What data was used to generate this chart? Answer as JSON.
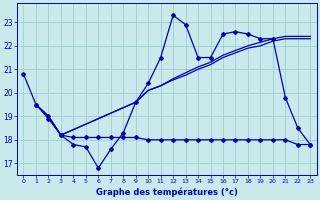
{
  "title": "Graphe des températures (°c)",
  "background_color": "#c8eaea",
  "line_color": "#0000bb",
  "grid_color": "#9ecece",
  "ylim": [
    16.5,
    23.8
  ],
  "yticks": [
    17,
    18,
    19,
    20,
    21,
    22,
    23
  ],
  "xticks": [
    0,
    1,
    2,
    3,
    4,
    5,
    6,
    7,
    8,
    9,
    10,
    11,
    12,
    13,
    14,
    15,
    16,
    17,
    18,
    19,
    20,
    21,
    22,
    23
  ],
  "line1_x": [
    0,
    1,
    2,
    3,
    4,
    5,
    6,
    7,
    8,
    9,
    10,
    11,
    12,
    13,
    14,
    15,
    16,
    17,
    18,
    19,
    20,
    21,
    22,
    23
  ],
  "line1_y": [
    20.8,
    19.5,
    18.9,
    18.2,
    17.8,
    17.7,
    16.8,
    17.6,
    18.3,
    19.6,
    20.4,
    21.5,
    23.3,
    22.9,
    21.5,
    21.5,
    22.5,
    22.6,
    22.5,
    22.3,
    22.3,
    19.8,
    18.5,
    17.8
  ],
  "line2_x": [
    1,
    2,
    3,
    4,
    5,
    6,
    7,
    8,
    9,
    10,
    11,
    12,
    13,
    14,
    15,
    16,
    17,
    18,
    19,
    20,
    21,
    22,
    23
  ],
  "line2_y": [
    19.5,
    19.0,
    18.2,
    18.1,
    18.1,
    18.1,
    18.1,
    18.1,
    18.1,
    18.0,
    18.0,
    18.0,
    18.0,
    18.0,
    18.0,
    18.0,
    18.0,
    18.0,
    18.0,
    18.0,
    18.0,
    17.8,
    17.8
  ],
  "line3_x": [
    1,
    2,
    3,
    9,
    10,
    11,
    12,
    13,
    14,
    15,
    16,
    17,
    18,
    19,
    20,
    21,
    22,
    23
  ],
  "line3_y": [
    19.5,
    19.0,
    18.2,
    19.6,
    20.1,
    20.3,
    20.55,
    20.75,
    21.0,
    21.2,
    21.5,
    21.7,
    21.9,
    22.0,
    22.2,
    22.3,
    22.3,
    22.3
  ],
  "line4_x": [
    1,
    2,
    3,
    9,
    10,
    11,
    12,
    13,
    14,
    15,
    16,
    17,
    18,
    19,
    20,
    21,
    22,
    23
  ],
  "line4_y": [
    19.5,
    19.0,
    18.2,
    19.6,
    20.1,
    20.3,
    20.6,
    20.85,
    21.1,
    21.3,
    21.6,
    21.8,
    22.0,
    22.15,
    22.3,
    22.4,
    22.4,
    22.4
  ]
}
